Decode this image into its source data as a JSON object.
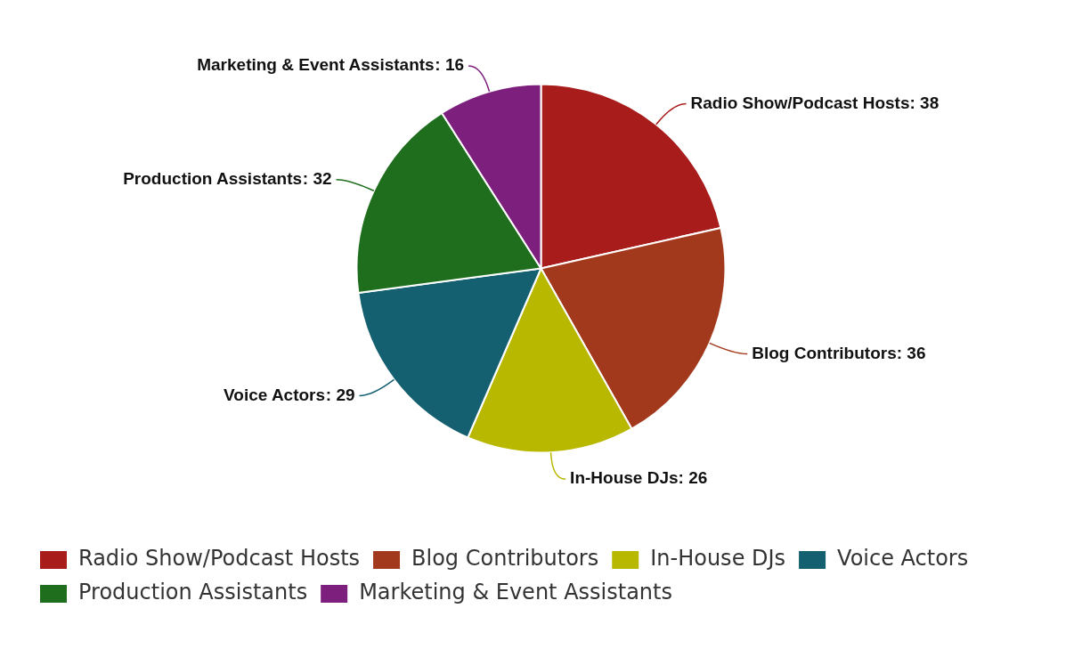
{
  "chart_data": {
    "type": "pie",
    "categories": [
      "Radio Show/Podcast Hosts",
      "Blog Contributors",
      "In-House DJs",
      "Voice Actors",
      "Production Assistants",
      "Marketing & Event Assistants"
    ],
    "values": [
      38,
      36,
      26,
      29,
      32,
      16
    ],
    "value_labels": [
      ": 38",
      ": 36",
      ": 26",
      ": 29",
      ": 32",
      ": 16"
    ],
    "colors": [
      "#a81c1c",
      "#a3391c",
      "#b8b800",
      "#145f70",
      "#1e6e1e",
      "#7d1f7d"
    ],
    "legend": "bottom"
  }
}
